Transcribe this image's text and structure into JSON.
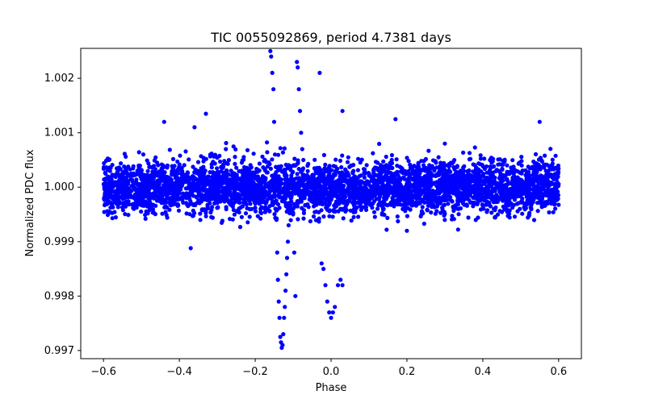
{
  "chart_data": {
    "type": "scatter",
    "title": "TIC 0055092869, period 4.7381 days",
    "xlabel": "Phase",
    "ylabel": "Normalized PDC flux",
    "xlim": [
      -0.66,
      0.66
    ],
    "ylim": [
      0.99685,
      1.00255
    ],
    "grid": false,
    "marker_color": "#0000ff",
    "x_ticks": [
      -0.6,
      -0.4,
      -0.2,
      0.0,
      0.2,
      0.4,
      0.6
    ],
    "x_tick_labels": [
      "−0.6",
      "−0.4",
      "−0.2",
      "0.0",
      "0.2",
      "0.4",
      "0.6"
    ],
    "y_ticks": [
      0.997,
      0.998,
      0.999,
      1.0,
      1.001,
      1.002
    ],
    "y_tick_labels": [
      "0.997",
      "0.998",
      "0.999",
      "1.000",
      "1.001",
      "1.002"
    ],
    "series": [
      {
        "baseline_flux": 1.0,
        "baseline_scatter": 0.00025,
        "phase_range": [
          -0.6,
          0.6
        ],
        "features": [
          {
            "kind": "dip",
            "phase_center": -0.13,
            "min_flux": 0.99705
          },
          {
            "kind": "peak",
            "phase_center": -0.155,
            "max_flux": 1.0025
          },
          {
            "kind": "peak",
            "phase_center": -0.09,
            "max_flux": 1.0023
          },
          {
            "kind": "dip",
            "phase_center": 0.0,
            "min_flux": 0.9976
          }
        ],
        "points": [
          [
            -0.16,
            1.0025
          ],
          [
            -0.158,
            1.0024
          ],
          [
            -0.155,
            1.0021
          ],
          [
            -0.152,
            1.0018
          ],
          [
            -0.15,
            1.0012
          ],
          [
            -0.148,
            1.0006
          ],
          [
            -0.146,
            1.0002
          ],
          [
            -0.144,
            0.9994
          ],
          [
            -0.142,
            0.9988
          ],
          [
            -0.14,
            0.9983
          ],
          [
            -0.138,
            0.9979
          ],
          [
            -0.136,
            0.9976
          ],
          [
            -0.134,
            0.99725
          ],
          [
            -0.132,
            0.99715
          ],
          [
            -0.13,
            0.99705
          ],
          [
            -0.128,
            0.9971
          ],
          [
            -0.126,
            0.9973
          ],
          [
            -0.124,
            0.9976
          ],
          [
            -0.122,
            0.9978
          ],
          [
            -0.12,
            0.9981
          ],
          [
            -0.118,
            0.9984
          ],
          [
            -0.116,
            0.9987
          ],
          [
            -0.114,
            0.999
          ],
          [
            -0.112,
            0.9993
          ],
          [
            -0.108,
            0.9996
          ],
          [
            -0.105,
            0.9998
          ],
          [
            -0.1,
            0.9995
          ],
          [
            -0.097,
            0.9988
          ],
          [
            -0.094,
            0.998
          ],
          [
            -0.09,
            1.0023
          ],
          [
            -0.088,
            1.0022
          ],
          [
            -0.085,
            1.0018
          ],
          [
            -0.082,
            1.0014
          ],
          [
            -0.079,
            1.001
          ],
          [
            -0.076,
            1.0007
          ],
          [
            -0.073,
            1.0005
          ],
          [
            -0.03,
            1.0021
          ],
          [
            -0.025,
            0.9986
          ],
          [
            -0.02,
            0.9985
          ],
          [
            -0.015,
            0.9982
          ],
          [
            -0.01,
            0.9979
          ],
          [
            -0.005,
            0.9977
          ],
          [
            0.0,
            0.9976
          ],
          [
            0.005,
            0.9977
          ],
          [
            0.01,
            0.9978
          ],
          [
            0.018,
            0.9982
          ],
          [
            0.025,
            0.9983
          ],
          [
            0.03,
            0.9982
          ],
          [
            0.03,
            1.0014
          ],
          [
            -0.44,
            1.0012
          ],
          [
            -0.36,
            1.0011
          ],
          [
            -0.33,
            1.00135
          ],
          [
            0.17,
            1.00125
          ],
          [
            0.3,
            1.0008
          ],
          [
            0.55,
            1.0012
          ],
          [
            -0.37,
            0.99888
          ],
          [
            0.2,
            0.9992
          ]
        ]
      }
    ]
  }
}
